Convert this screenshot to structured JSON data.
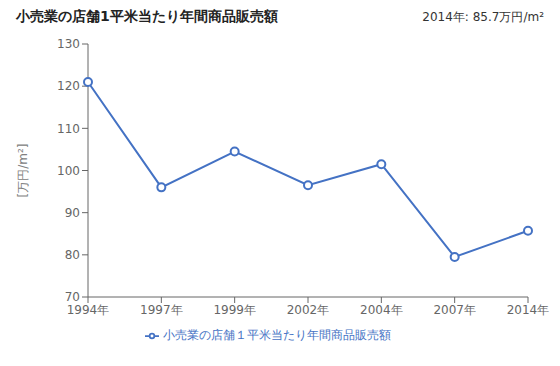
{
  "chart_data": {
    "type": "line",
    "title": "小売業の店舗1平米当たり年間商品販売額",
    "ylabel": "[万円/m²]",
    "annotation": "2014年: 85.7万円/m²",
    "categories": [
      "1994年",
      "1997年",
      "1999年",
      "2002年",
      "2004年",
      "2007年",
      "2014年"
    ],
    "series": [
      {
        "name": "小売業の店舗１平米当たり年間商品販売額",
        "color": "#4472C4",
        "marker": "circle",
        "values": [
          121.0,
          96.0,
          104.5,
          96.5,
          101.5,
          79.5,
          85.7
        ]
      }
    ],
    "ylim": [
      70,
      130
    ],
    "yticks": [
      70,
      80,
      90,
      100,
      110,
      120,
      130
    ],
    "grid": false,
    "legend": "bottom"
  }
}
